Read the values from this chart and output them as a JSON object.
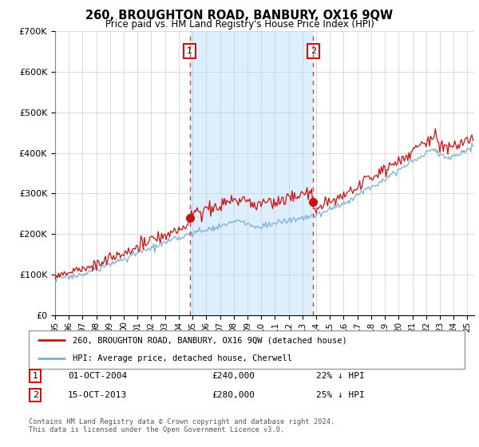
{
  "title": "260, BROUGHTON ROAD, BANBURY, OX16 9QW",
  "subtitle": "Price paid vs. HM Land Registry's House Price Index (HPI)",
  "legend_line1": "260, BROUGHTON ROAD, BANBURY, OX16 9QW (detached house)",
  "legend_line2": "HPI: Average price, detached house, Cherwell",
  "sale1_date": "01-OCT-2004",
  "sale1_price": "£240,000",
  "sale1_hpi": "22% ↓ HPI",
  "sale2_date": "15-OCT-2013",
  "sale2_price": "£280,000",
  "sale2_hpi": "25% ↓ HPI",
  "footer": "Contains HM Land Registry data © Crown copyright and database right 2024.\nThis data is licensed under the Open Government Licence v3.0.",
  "hpi_color": "#7bafd4",
  "price_color": "#cc1111",
  "shade_color": "#ddeeff",
  "marker1_year": 2004.79,
  "marker1_price": 240000,
  "marker2_year": 2013.79,
  "marker2_price": 280000,
  "ylim_min": 0,
  "ylim_max": 700000,
  "xlim_start": 1995.0,
  "xlim_end": 2025.5
}
